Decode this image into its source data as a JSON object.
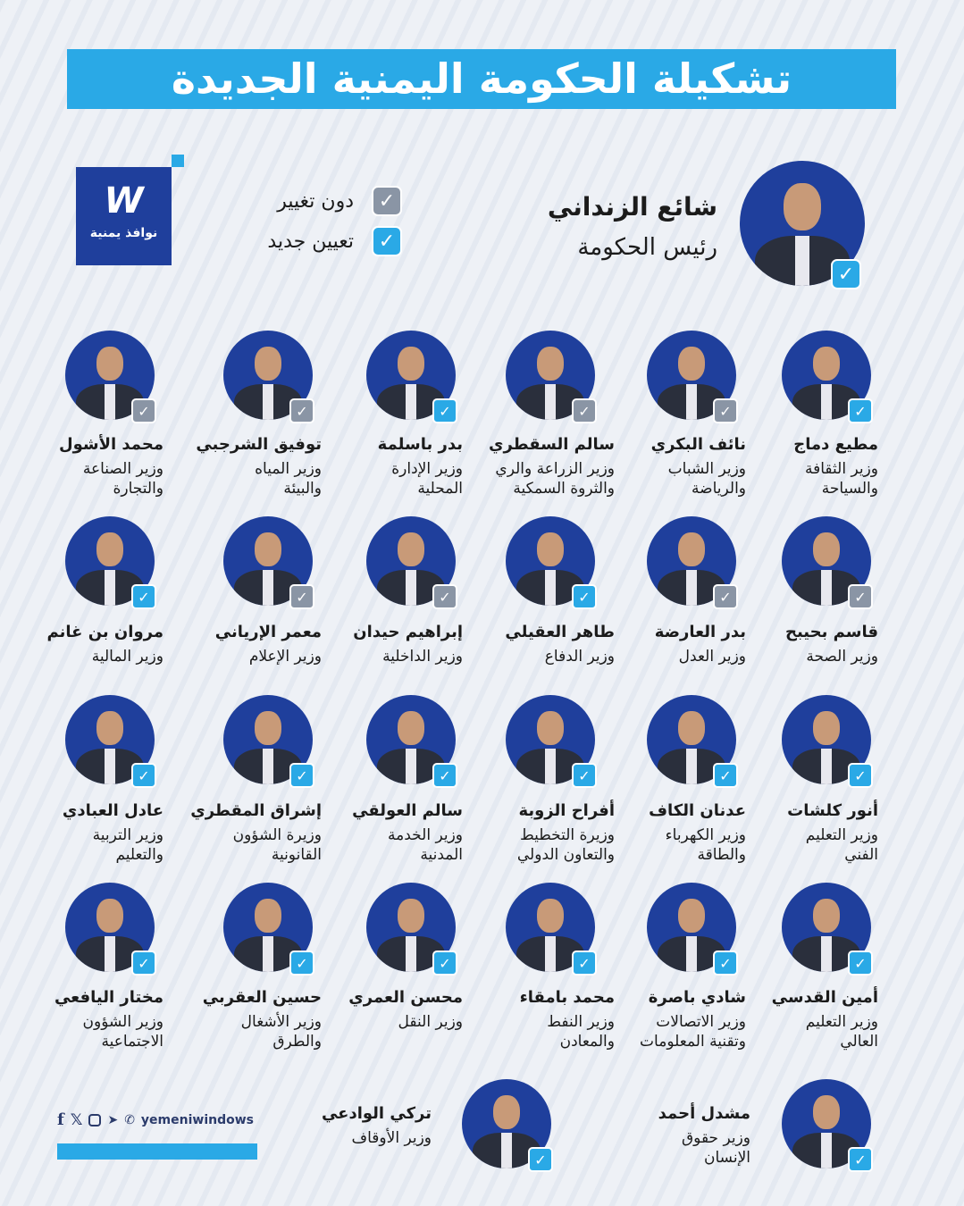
{
  "title": "تشكيلة الحكومة اليمنية الجديدة",
  "logo": {
    "mark": "W",
    "text": "نوافذ يمنية"
  },
  "legend": [
    {
      "label": "دون تغيير",
      "status": "unchanged"
    },
    {
      "label": "تعيين جديد",
      "status": "new"
    }
  ],
  "colors": {
    "accent": "#2aa9e6",
    "brand": "#1f3f9c",
    "unchanged": "#8a95a5"
  },
  "prime_minister": {
    "name": "شائع الزنداني",
    "role": "رئيس الحكومة",
    "status": "new"
  },
  "ministers": [
    {
      "name": "مطيع دماج",
      "role": [
        "وزير الثقافة",
        "والسياحة"
      ],
      "status": "new"
    },
    {
      "name": "نائف البكري",
      "role": [
        "وزير الشباب",
        "والرياضة"
      ],
      "status": "unchanged"
    },
    {
      "name": "سالم السقطري",
      "role": [
        "وزير الزراعة والري",
        "والثروة السمكية"
      ],
      "status": "unchanged"
    },
    {
      "name": "بدر باسلمة",
      "role": [
        "وزير الإدارة",
        "المحلية"
      ],
      "status": "new"
    },
    {
      "name": "توفيق الشرجبي",
      "role": [
        "وزير المياه",
        "والبيئة"
      ],
      "status": "unchanged"
    },
    {
      "name": "محمد الأشول",
      "role": [
        "وزير الصناعة",
        "والتجارة"
      ],
      "status": "unchanged"
    },
    {
      "name": "قاسم بحيبح",
      "role": [
        "وزير الصحة"
      ],
      "status": "unchanged"
    },
    {
      "name": "بدر العارضة",
      "role": [
        "وزير العدل"
      ],
      "status": "unchanged"
    },
    {
      "name": "طاهر العقيلي",
      "role": [
        "وزير الدفاع"
      ],
      "status": "new"
    },
    {
      "name": "إبراهيم حيدان",
      "role": [
        "وزير الداخلية"
      ],
      "status": "unchanged"
    },
    {
      "name": "معمر الإرياني",
      "role": [
        "وزير الإعلام"
      ],
      "status": "unchanged"
    },
    {
      "name": "مروان بن غانم",
      "role": [
        "وزير المالية"
      ],
      "status": "new"
    },
    {
      "name": "أنور كلشات",
      "role": [
        "وزير التعليم",
        "الفني"
      ],
      "status": "new"
    },
    {
      "name": "عدنان الكاف",
      "role": [
        "وزير الكهرباء",
        "والطاقة"
      ],
      "status": "new"
    },
    {
      "name": "أفراح الزوبة",
      "role": [
        "وزيرة التخطيط",
        "والتعاون الدولي"
      ],
      "status": "new"
    },
    {
      "name": "سالم العولقي",
      "role": [
        "وزير الخدمة",
        "المدنية"
      ],
      "status": "new"
    },
    {
      "name": "إشراق المقطري",
      "role": [
        "وزيرة الشؤون",
        "القانونية"
      ],
      "status": "new"
    },
    {
      "name": "عادل العبادي",
      "role": [
        "وزير التربية",
        "والتعليم"
      ],
      "status": "new"
    },
    {
      "name": "أمين القدسي",
      "role": [
        "وزير التعليم",
        "العالي"
      ],
      "status": "new"
    },
    {
      "name": "شادي باصرة",
      "role": [
        "وزير الاتصالات",
        "وتقنية المعلومات"
      ],
      "status": "new"
    },
    {
      "name": "محمد بامقاء",
      "role": [
        "وزير النفط",
        "والمعادن"
      ],
      "status": "new"
    },
    {
      "name": "محسن العمري",
      "role": [
        "وزير النقل"
      ],
      "status": "new"
    },
    {
      "name": "حسين العقربي",
      "role": [
        "وزير الأشغال",
        "والطرق"
      ],
      "status": "new"
    },
    {
      "name": "مختار اليافعي",
      "role": [
        "وزير الشؤون",
        "الاجتماعية"
      ],
      "status": "new"
    },
    {
      "name": "مشدل أحمد",
      "role": [
        "وزير حقوق",
        "الإنسان"
      ],
      "status": "new"
    },
    {
      "name": "تركي الوادعي",
      "role": [
        "وزير الأوقاف"
      ],
      "status": "new"
    }
  ],
  "footer": {
    "handle": "yemeniwindows",
    "icons": [
      "facebook-icon",
      "x-icon",
      "instagram-icon",
      "telegram-icon",
      "whatsapp-icon"
    ]
  }
}
